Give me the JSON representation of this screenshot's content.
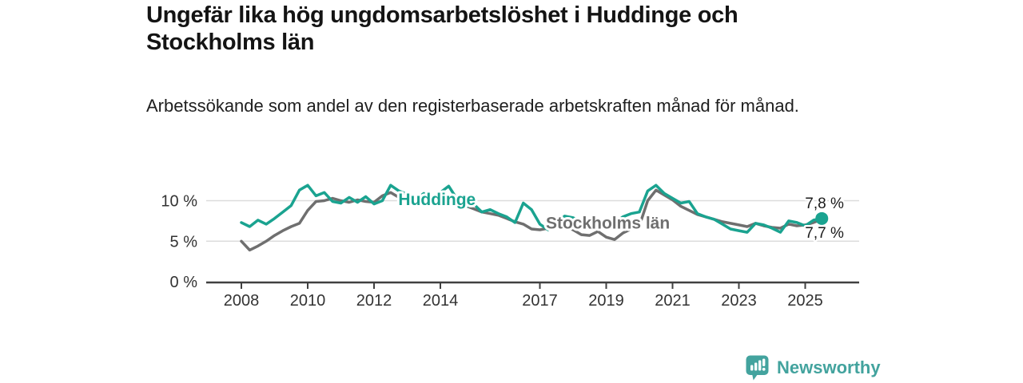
{
  "header": {
    "title": "Ungefär lika hög ungdomsarbetslöshet i Huddinge och Stockholms län",
    "subtitle": "Arbetssökande som andel av den registerbaserade arbetskraften månad för månad."
  },
  "footer": {
    "brand": "Newsworthy",
    "logo_icon": "bar-chart-speech-bubble",
    "brand_color": "#43a39e"
  },
  "chart_data": {
    "type": "line",
    "unit": "%",
    "x_start": 2008.0,
    "x_step": 0.25,
    "x_axis": {
      "ticks": [
        {
          "value": 2008,
          "label": "2008"
        },
        {
          "value": 2010,
          "label": "2010"
        },
        {
          "value": 2012,
          "label": "2012"
        },
        {
          "value": 2014,
          "label": "2014"
        },
        {
          "value": 2017,
          "label": "2017"
        },
        {
          "value": 2019,
          "label": "2019"
        },
        {
          "value": 2021,
          "label": "2021"
        },
        {
          "value": 2023,
          "label": "2023"
        },
        {
          "value": 2025,
          "label": "2025"
        }
      ],
      "range": [
        2006.9,
        2026.6
      ]
    },
    "y_axis": {
      "ticks": [
        {
          "value": 0,
          "label": "0 %"
        },
        {
          "value": 5,
          "label": "5 %"
        },
        {
          "value": 10,
          "label": "10 %"
        }
      ],
      "range": [
        0,
        13
      ],
      "grid": true
    },
    "series": [
      {
        "name": "Stockholms län",
        "color": "#6f6f6f",
        "end_label": "7,7 %",
        "end_dot": false,
        "label_pos": {
          "x": 2019.05,
          "y": 7.25
        },
        "values": [
          5.0,
          3.9,
          4.4,
          5.0,
          5.7,
          6.3,
          6.8,
          7.2,
          8.8,
          9.9,
          10.0,
          10.3,
          10.0,
          9.8,
          10.1,
          9.9,
          9.8,
          10.6,
          11.0,
          10.4,
          10.1,
          10.5,
          10.2,
          10.5,
          10.6,
          10.3,
          9.7,
          9.4,
          9.0,
          8.6,
          8.4,
          8.2,
          7.8,
          7.4,
          7.1,
          6.5,
          6.4,
          6.6,
          6.8,
          6.9,
          6.4,
          5.8,
          5.7,
          6.2,
          5.5,
          5.2,
          6.0,
          6.5,
          6.9,
          10.0,
          11.3,
          10.7,
          10.1,
          9.3,
          8.8,
          8.3,
          8.0,
          7.7,
          7.4,
          7.2,
          7.0,
          6.8,
          7.2,
          6.9,
          6.7,
          6.6,
          7.1,
          6.9,
          7.0,
          7.3,
          7.7
        ]
      },
      {
        "name": "Huddinge",
        "color": "#1aa390",
        "end_label": "7,8 %",
        "end_dot": true,
        "label_pos": {
          "x": 2013.9,
          "y": 10.15
        },
        "values": [
          7.3,
          6.8,
          7.6,
          7.1,
          7.8,
          8.6,
          9.4,
          11.3,
          11.9,
          10.6,
          11.0,
          9.9,
          9.7,
          10.4,
          9.8,
          10.5,
          9.6,
          10.0,
          11.9,
          11.2,
          10.8,
          10.1,
          10.9,
          10.2,
          11.0,
          11.8,
          10.2,
          9.2,
          9.6,
          8.6,
          8.9,
          8.4,
          8.0,
          7.3,
          9.7,
          8.9,
          7.1,
          6.4,
          7.4,
          8.1,
          7.9,
          7.3,
          7.8,
          7.5,
          7.6,
          7.2,
          8.0,
          8.4,
          8.6,
          11.2,
          11.9,
          10.9,
          10.3,
          9.7,
          9.9,
          8.4,
          8.0,
          7.7,
          7.1,
          6.5,
          6.3,
          6.1,
          7.2,
          7.0,
          6.6,
          6.1,
          7.5,
          7.3,
          6.9,
          7.6,
          7.8
        ]
      }
    ],
    "colors": {
      "grid": "#dcdcdc",
      "axis": "#404040",
      "tick_text": "#333333",
      "end_label_text": "#1a1a1a"
    }
  }
}
